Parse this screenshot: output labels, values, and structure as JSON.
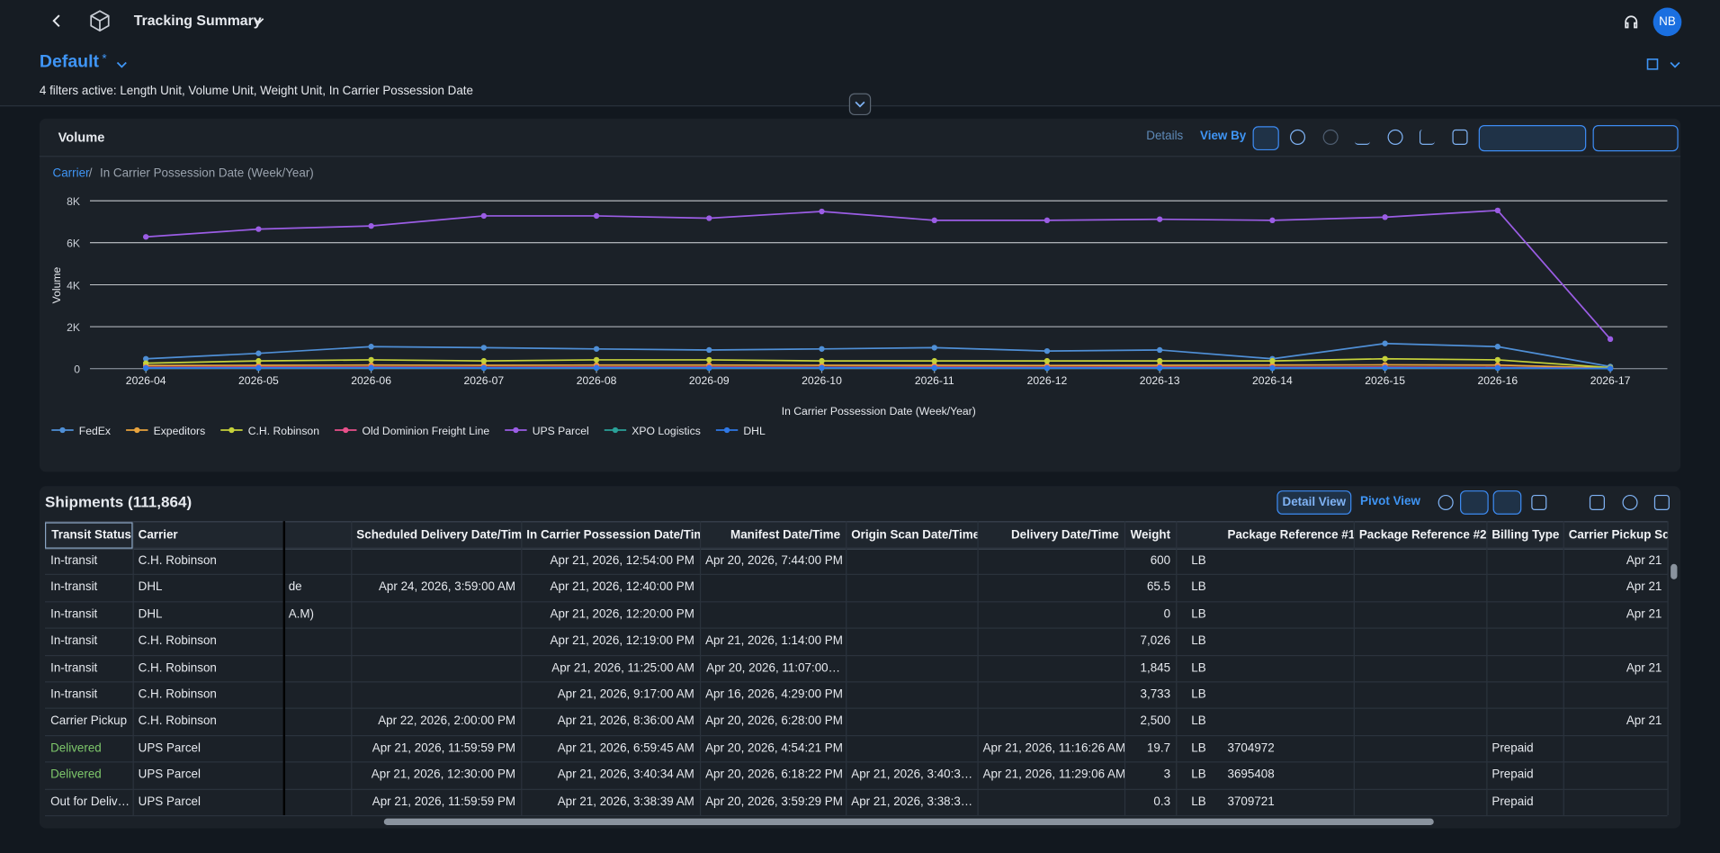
{
  "header": {
    "title": "Tracking Summary",
    "avatar": "NB"
  },
  "variant": {
    "name": "Default",
    "modified": "*"
  },
  "filter_text": "4 filters active: Length Unit, Volume Unit, Weight Unit, In Carrier Possession Date",
  "chart_panel": {
    "title": "Volume",
    "details": "Details",
    "view_by": "View By",
    "breadcrumb": [
      "Carrier",
      "In Carrier Possession Date (Week/Year)"
    ]
  },
  "chart_data": {
    "type": "line",
    "ylabel": "Volume",
    "xlabel": "In Carrier Possession Date (Week/Year)",
    "categories": [
      "2026-04",
      "2026-05",
      "2026-06",
      "2026-07",
      "2026-08",
      "2026-09",
      "2026-10",
      "2026-11",
      "2026-12",
      "2026-13",
      "2026-14",
      "2026-15",
      "2026-16",
      "2026-17"
    ],
    "ylim": [
      0,
      8000
    ],
    "yticks": [
      0,
      {
        "value": 2000,
        "label": "2K"
      },
      {
        "value": 4000,
        "label": "4K"
      },
      {
        "value": 6000,
        "label": "6K"
      },
      {
        "value": 8000,
        "label": "8K"
      }
    ],
    "grid": true,
    "series": [
      {
        "name": "FedEx",
        "color": "#4f8fd6",
        "values": [
          470,
          730,
          1050,
          1000,
          940,
          890,
          940,
          1000,
          840,
          890,
          470,
          1200,
          1050,
          100
        ]
      },
      {
        "name": "Expeditors",
        "color": "#e8a33d",
        "values": [
          150,
          160,
          170,
          160,
          170,
          170,
          160,
          160,
          150,
          160,
          170,
          180,
          170,
          30
        ]
      },
      {
        "name": "C.H. Robinson",
        "color": "#c6d13a",
        "values": [
          260,
          370,
          420,
          370,
          420,
          420,
          370,
          370,
          370,
          370,
          370,
          470,
          420,
          50
        ]
      },
      {
        "name": "Old Dominion Freight Line",
        "color": "#e8508a",
        "values": [
          60,
          70,
          70,
          60,
          70,
          70,
          60,
          70,
          60,
          70,
          60,
          70,
          60,
          10
        ]
      },
      {
        "name": "UPS Parcel",
        "color": "#9b5de5",
        "values": [
          6280,
          6650,
          6800,
          7280,
          7280,
          7170,
          7490,
          7070,
          7070,
          7120,
          7070,
          7220,
          7540,
          1410
        ]
      },
      {
        "name": "XPO Logistics",
        "color": "#2aa198",
        "values": [
          20,
          25,
          30,
          25,
          30,
          25,
          30,
          25,
          20,
          25,
          20,
          30,
          25,
          5
        ]
      },
      {
        "name": "DHL",
        "color": "#2f78e6",
        "values": [
          30,
          35,
          40,
          35,
          40,
          35,
          40,
          35,
          30,
          35,
          30,
          40,
          35,
          10
        ]
      }
    ]
  },
  "table": {
    "title": "Shipments (111,864)",
    "detail_view": "Detail View",
    "pivot_view": "Pivot View",
    "columns": [
      "Transit Status",
      "Carrier",
      null,
      "Scheduled Delivery Date/Time",
      "In Carrier Possession Date/Time",
      "Manifest Date/Time",
      "Origin Scan Date/Time",
      "Delivery Date/Time",
      "Weight",
      null,
      "Package Reference #1",
      "Package Reference #2",
      "Billing Type",
      "Carrier Pickup Sca"
    ],
    "rows": [
      [
        "In-transit",
        "C.H. Robinson",
        null,
        null,
        "Apr 21, 2026, 12:54:00 PM",
        "Apr 20, 2026, 7:44:00 PM",
        null,
        null,
        "600",
        "LB",
        null,
        null,
        null,
        "Apr 21"
      ],
      [
        "In-transit",
        "DHL",
        "de",
        "Apr 24, 2026, 3:59:00 AM",
        "Apr 21, 2026, 12:40:00 PM",
        null,
        null,
        null,
        "65.5",
        "LB",
        null,
        null,
        null,
        "Apr 21"
      ],
      [
        "In-transit",
        "DHL",
        "A.M)",
        null,
        "Apr 21, 2026, 12:20:00 PM",
        null,
        null,
        null,
        "0",
        "LB",
        null,
        null,
        null,
        "Apr 21"
      ],
      [
        "In-transit",
        "C.H. Robinson",
        null,
        null,
        "Apr 21, 2026, 12:19:00 PM",
        "Apr 21, 2026, 1:14:00 PM",
        null,
        null,
        "7,026",
        "LB",
        null,
        null,
        null,
        null
      ],
      [
        "In-transit",
        "C.H. Robinson",
        null,
        null,
        "Apr 21, 2026, 11:25:00 AM",
        "Apr 20, 2026, 11:07:00…",
        null,
        null,
        "1,845",
        "LB",
        null,
        null,
        null,
        "Apr 21"
      ],
      [
        "In-transit",
        "C.H. Robinson",
        null,
        null,
        "Apr 21, 2026, 9:17:00 AM",
        "Apr 16, 2026, 4:29:00 PM",
        null,
        null,
        "3,733",
        "LB",
        null,
        null,
        null,
        null
      ],
      [
        "Carrier Pickup",
        "C.H. Robinson",
        null,
        "Apr 22, 2026, 2:00:00 PM",
        "Apr 21, 2026, 8:36:00 AM",
        "Apr 20, 2026, 6:28:00 PM",
        null,
        null,
        "2,500",
        "LB",
        null,
        null,
        null,
        "Apr 21"
      ],
      [
        "Delivered",
        "UPS Parcel",
        null,
        "Apr 21, 2026, 11:59:59 PM",
        "Apr 21, 2026, 6:59:45 AM",
        "Apr 20, 2026, 4:54:21 PM",
        null,
        "Apr 21, 2026, 11:16:26 AM",
        "19.7",
        "LB",
        "3704972",
        null,
        "Prepaid",
        null
      ],
      [
        "Delivered",
        "UPS Parcel",
        null,
        "Apr 21, 2026, 12:30:00 PM",
        "Apr 21, 2026, 3:40:34 AM",
        "Apr 20, 2026, 6:18:22 PM",
        "Apr 21, 2026, 3:40:3…",
        "Apr 21, 2026, 11:29:06 AM",
        "3",
        "LB",
        "3695408",
        null,
        "Prepaid",
        null
      ],
      [
        "Out for Deliv…",
        "UPS Parcel",
        null,
        "Apr 21, 2026, 11:59:59 PM",
        "Apr 21, 2026, 3:38:39 AM",
        "Apr 20, 2026, 3:59:29 PM",
        "Apr 21, 2026, 3:38:3…",
        null,
        "0.3",
        "LB",
        "3709721",
        null,
        "Prepaid",
        null
      ]
    ]
  }
}
